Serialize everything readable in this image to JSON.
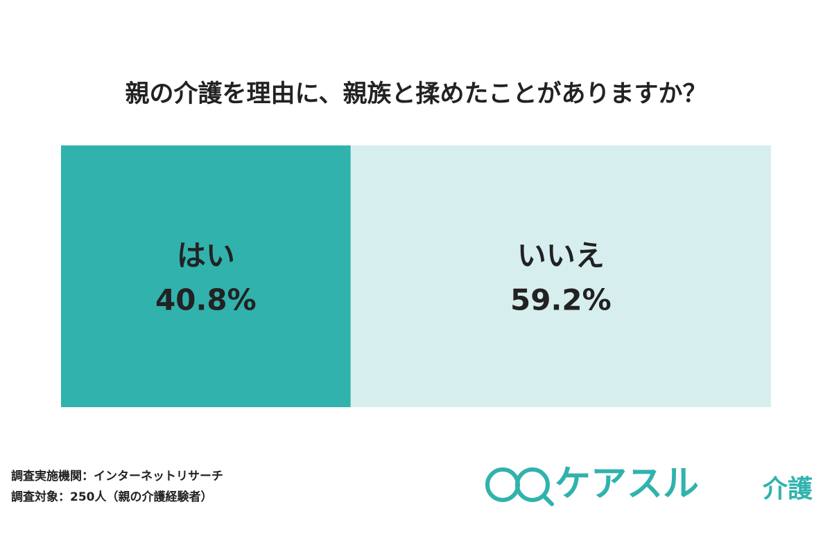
{
  "chart_data": {
    "type": "bar",
    "title": "親の介護を理由に、親族と揉めたことがありますか？",
    "categories": [
      "はい",
      "いいえ"
    ],
    "values": [
      40.8,
      59.2
    ],
    "value_labels": [
      "40.8%",
      "59.2%"
    ],
    "colors": [
      "#31b2ad",
      "#d6efee"
    ],
    "xlim": [
      0,
      100
    ],
    "notes": [
      "調査実施機関：インターネットリサーチ",
      "調査対象：250人（親の介護経験者）"
    ],
    "logo": "ケアスル",
    "logo_sub": "介護"
  }
}
